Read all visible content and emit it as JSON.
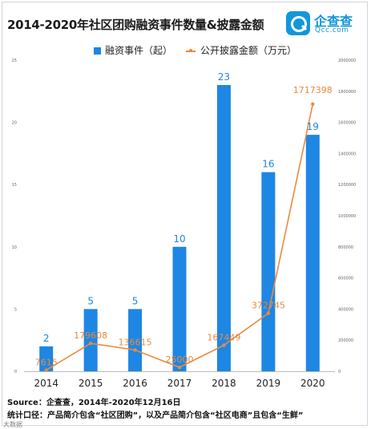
{
  "header": {
    "title": "2014-2020年社区团购融资事件数量&披露金额",
    "logo_name": "企查查",
    "logo_domain": "Qcc.com"
  },
  "legend": {
    "bar_label": "融资事件（起）",
    "line_label": "公开披露金额（万元）"
  },
  "footer": {
    "source": "Source：企查查，2014年-2020年12月16日",
    "caliber": "统计口径：产品简介包含“社区团购”，以及产品简介包含“社区电商”且包含“生鲜”",
    "watermark": "大数据"
  },
  "colors": {
    "bar": "#1e86e3",
    "line": "#e98b3d",
    "text": "#222222",
    "axis": "#bbbbbb"
  },
  "chart_data": {
    "type": "bar",
    "categories": [
      "2014",
      "2015",
      "2016",
      "2017",
      "2018",
      "2019",
      "2020"
    ],
    "series": [
      {
        "name": "融资事件（起）",
        "type": "bar",
        "axis": "left",
        "values": [
          2,
          5,
          5,
          10,
          23,
          16,
          19
        ],
        "labels": [
          "2",
          "5",
          "5",
          "10",
          "23",
          "16",
          "19"
        ]
      },
      {
        "name": "公开披露金额（万元）",
        "type": "line",
        "axis": "right",
        "values": [
          7615,
          179608,
          136615,
          25000,
          167449,
          372745,
          1717398
        ],
        "labels": [
          "7615",
          "179608",
          "136615",
          "25000",
          "167449",
          "372745",
          "1717398"
        ]
      }
    ],
    "y_left": {
      "ylim": [
        0,
        25
      ],
      "ticks": [
        "0",
        "5",
        "10",
        "15",
        "20",
        "25"
      ]
    },
    "y_right": {
      "ylim": [
        0,
        2000000
      ],
      "ticks": [
        "0",
        "200000",
        "400000",
        "600000",
        "800000",
        "1000000",
        "1200000",
        "1400000",
        "1600000",
        "1800000",
        "2000000"
      ]
    },
    "grid": false,
    "legend_position": "top"
  }
}
